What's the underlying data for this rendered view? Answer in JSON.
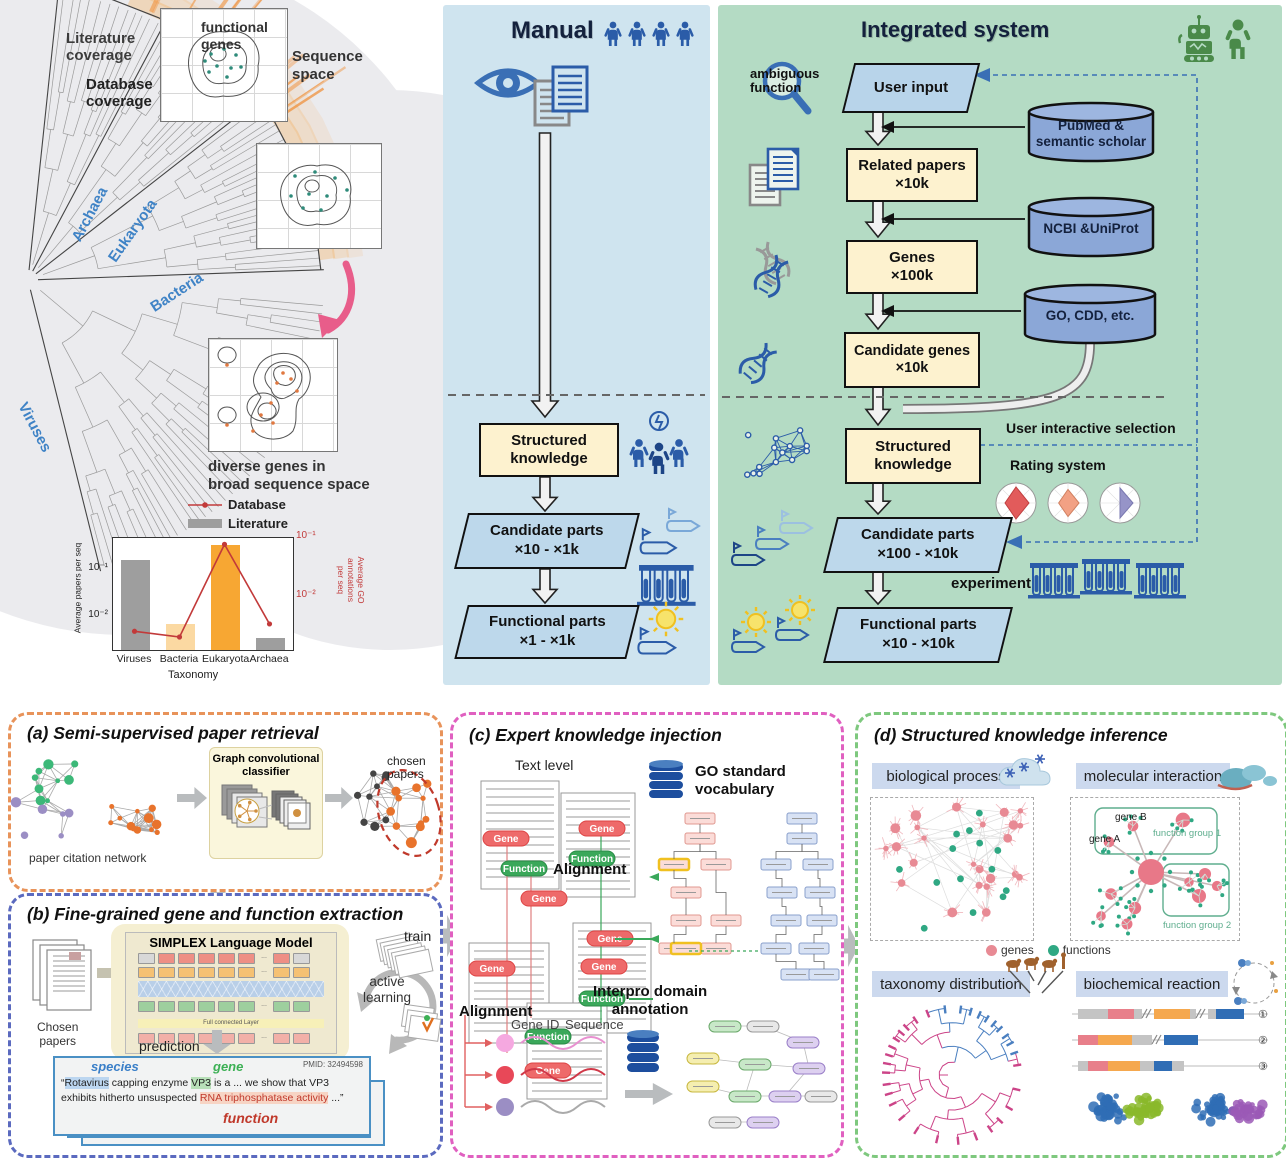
{
  "top_left": {
    "literature_coverage": "Literature\ncoverage",
    "database_coverage": "Database\ncoverage",
    "clade_archaea": "Archaea",
    "clade_eukaryota": "Eukaryota",
    "clade_bacteria": "Bacteria",
    "clade_viruses": "Viruses",
    "functional_genes": "functional\ngenes",
    "sequence_space": "Sequence\nspace",
    "diverse_genes": "diverse genes in\nbroad sequence space"
  },
  "chart_data": {
    "type": "bar+line",
    "categories": [
      "Viruses",
      "Bacteria",
      "Eukaryota",
      "Archaea"
    ],
    "xlabel": "Taxonomy",
    "series": [
      {
        "name": "Literature",
        "type": "bar",
        "axis": "left",
        "values": [
          0.2,
          0.009,
          0.42,
          0.0045
        ],
        "bar_colors": [
          "#9e9e9e",
          "#fbd9a2",
          "#f7a733",
          "#9e9e9e"
        ]
      },
      {
        "name": "Database",
        "type": "line",
        "axis": "right",
        "values": [
          0.003,
          0.0024,
          0.09,
          0.004
        ],
        "color": "#c23a3a"
      }
    ],
    "left_axis": {
      "label": "Average papers per seq",
      "scale": "log",
      "range": [
        0.0025,
        0.6
      ],
      "ticks": [
        {
          "value": 0.1,
          "label": "10⁻¹"
        },
        {
          "value": 0.01,
          "label": "10⁻²"
        }
      ]
    },
    "right_axis": {
      "label": "Average GO annotations\nper seq",
      "scale": "log",
      "range": [
        0.0015,
        0.12
      ],
      "color": "#c23a3a",
      "ticks": [
        {
          "value": 0.1,
          "label": "10⁻¹"
        },
        {
          "value": 0.01,
          "label": "10⁻²"
        }
      ]
    },
    "legend": [
      {
        "label": "Database",
        "marker": "line"
      },
      {
        "label": "Literature",
        "marker": "bar"
      }
    ],
    "legend_position": "top-right",
    "grid": false
  },
  "manual": {
    "title": "Manual",
    "structured_knowledge": "Structured\nknowledge",
    "candidate_parts": "Candidate parts",
    "candidate_range": "×10 - ×1k",
    "functional_parts": "Functional parts",
    "functional_range": "×1 - ×1k"
  },
  "integrated": {
    "title": "Integrated system",
    "ambiguous_function": "ambiguous\nfunction",
    "user_input": "User input",
    "pubmed": "PubMed &\nsemantic scholar",
    "related_papers": "Related papers",
    "related_count": "×10k",
    "ncbi": "NCBI &UniProt",
    "genes": "Genes",
    "genes_count": "×100k",
    "go_cdd": "GO, CDD, etc.",
    "candidate_genes": "Candidate genes",
    "candidate_genes_count": "×10k",
    "structured_knowledge": "Structured\nknowledge",
    "user_selection": "User interactive selection",
    "rating_system": "Rating system",
    "candidate_parts": "Candidate parts",
    "candidate_range": "×100 - ×10k",
    "experiment": "experiment",
    "functional_parts": "Functional parts",
    "functional_range": "×10 - ×10k"
  },
  "panel_a": {
    "title": "(a) Semi-supervised paper retrieval",
    "citation_network": "paper citation network",
    "classifier": "Graph convolutional\nclassifier",
    "chosen_papers": "chosen\npapers"
  },
  "panel_b": {
    "title": "(b) Fine-grained gene and function extraction",
    "chosen_papers": "Chosen\npapers",
    "model_title": "SIMPLEX Language Model",
    "fc_layer": "Full connected Layer",
    "train": "train",
    "active_learning": "active\nlearning",
    "prediction": "prediction",
    "pred_card": {
      "pmid": "PMID: 32494598",
      "species_label": "species",
      "gene_label": "gene",
      "function_label": "function",
      "q1": "“",
      "species": "Rotavirus",
      "t1": " capping enzyme ",
      "gene": "VP3",
      "t2": " is a ... we show that VP3 exhibits hitherto unsuspected ",
      "function": "RNA triphosphatase activity",
      "t3": " ...”"
    }
  },
  "panel_c": {
    "title": "(c) Expert knowledge injection",
    "text_level": "Text level",
    "go_vocabulary": "GO standard\nvocabulary",
    "alignment_top": "Alignment",
    "alignment_bottom": "Alignment",
    "gene_id": "Gene ID",
    "sequence": "Sequence",
    "interpro": "Interpro domain\nannotation",
    "gene_pill": "Gene",
    "function_pill": "Function"
  },
  "panel_d": {
    "title": "(d) Structured knowledge inference",
    "biological_process": "biological process",
    "molecular_interaction": "molecular interaction",
    "gene_a": "gene A",
    "gene_b": "gene B",
    "function_group_1": "function group 1",
    "function_group_2": "function group 2",
    "legend_genes": "genes",
    "legend_functions": "functions",
    "taxonomy_distribution": "taxonomy distribution",
    "biochemical_reaction": "biochemical reaction",
    "construct_labels": [
      "①",
      "②",
      "③"
    ]
  },
  "colors": {
    "manual_bg": "#cfe4ef",
    "integrated_bg": "#b4dbc4",
    "cream_box": "#fdf2cf",
    "blue_para": "#bdd8eb",
    "cylinder": "#8ba7d7",
    "accent_blue": "#2b5ca8",
    "genes_node": "#e88a94",
    "functions_node": "#2fa883",
    "dashed_feedback": "#3a6fb5"
  }
}
